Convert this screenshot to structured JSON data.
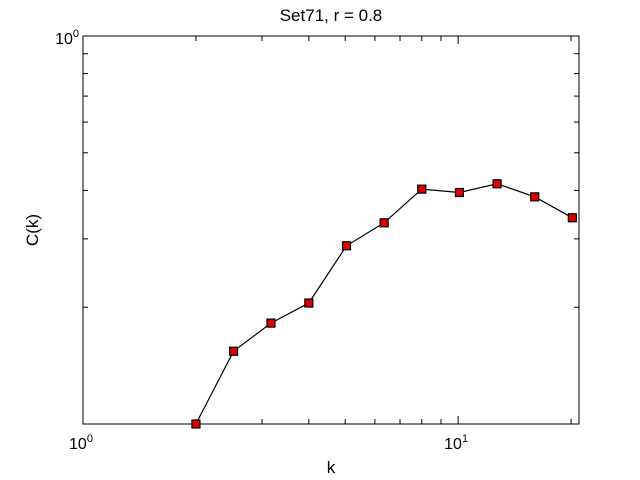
{
  "chart_data": {
    "type": "line",
    "title": "Set71, r = 0.8",
    "xlabel": "k",
    "ylabel": "C(k)",
    "xscale": "log",
    "yscale": "log",
    "xlim": [
      1,
      21
    ],
    "ylim": [
      0.1,
      1
    ],
    "x_tick_labels": [
      {
        "value": 1,
        "base": "10",
        "exp": "0"
      },
      {
        "value": 10,
        "base": "10",
        "exp": "1"
      }
    ],
    "y_tick_labels": [
      {
        "value": 1,
        "base": "10",
        "exp": "0"
      }
    ],
    "grid": false,
    "legend": "none",
    "series": [
      {
        "x": [
          2.0,
          2.52,
          3.17,
          4.0,
          5.04,
          6.35,
          8.0,
          10.08,
          12.7,
          16.0,
          20.16
        ],
        "y": [
          0.1,
          0.154,
          0.182,
          0.205,
          0.288,
          0.33,
          0.403,
          0.395,
          0.416,
          0.385,
          0.34
        ],
        "color": "#000000",
        "marker": "square",
        "marker_fill": "#dd0000"
      }
    ]
  }
}
